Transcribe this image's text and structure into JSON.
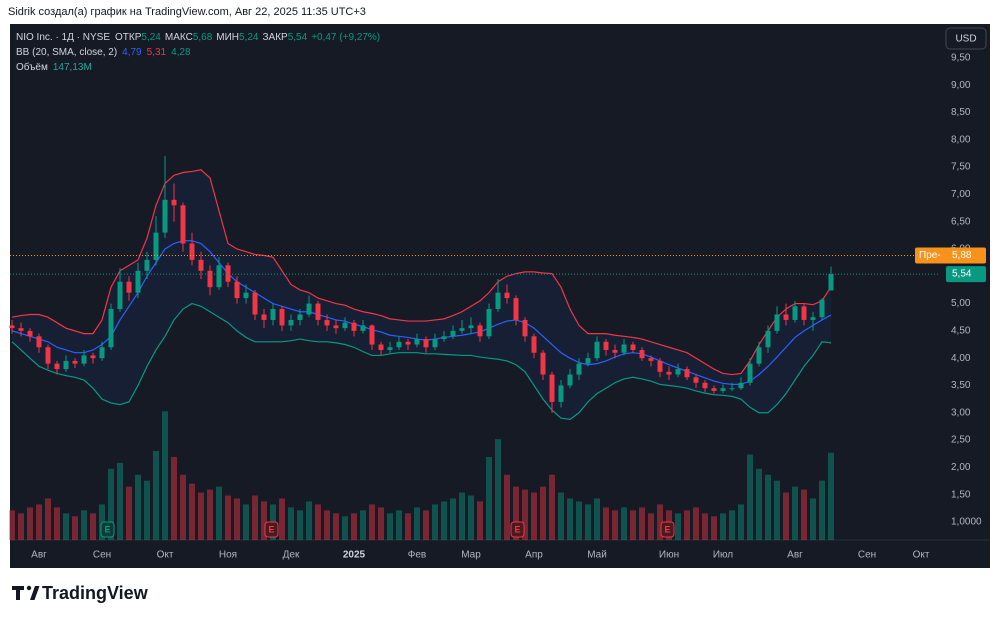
{
  "header": "Sidrik создал(а) график на TradingView.com, Авг 22, 2025 11:35 UTC+3",
  "footer_logo": "TradingView",
  "currency": "USD",
  "earnings_label": "E",
  "chart_data": {
    "type": "candlestick",
    "legend": {
      "symbol": "NIO Inc. · 1Д · NYSE",
      "open_label": "ОТКР",
      "open": "5,24",
      "high_label": "МАКС",
      "high": "5,68",
      "low_label": "МИН",
      "low": "5,24",
      "close_label": "ЗАКР",
      "close": "5,54",
      "change": "+0,47 (+9,27%)"
    },
    "up_color": "#089981",
    "down_color": "#f23645",
    "ylim": [
      0.67,
      10.12
    ],
    "yticks": [
      {
        "value": 9.5,
        "label": "9,50"
      },
      {
        "value": 9,
        "label": "9,00"
      },
      {
        "value": 8.5,
        "label": "8,50"
      },
      {
        "value": 8,
        "label": "8,00"
      },
      {
        "value": 7.5,
        "label": "7,50"
      },
      {
        "value": 7,
        "label": "7,00"
      },
      {
        "value": 6.5,
        "label": "6,50"
      },
      {
        "value": 6,
        "label": "6,00"
      },
      {
        "value": 5,
        "label": "5,00"
      },
      {
        "value": 4.5,
        "label": "4,50"
      },
      {
        "value": 4,
        "label": "4,00"
      },
      {
        "value": 3.5,
        "label": "3,50"
      },
      {
        "value": 3,
        "label": "3,00"
      },
      {
        "value": 2.5,
        "label": "2,50"
      },
      {
        "value": 2,
        "label": "2,00"
      },
      {
        "value": 1.5,
        "label": "1,50"
      },
      {
        "value": 1,
        "label": "1,0000"
      }
    ],
    "premarket": {
      "label": "Пре-",
      "value": 5.88,
      "value_label": "5,88",
      "color": "#f7931a"
    },
    "categories": [
      null,
      null,
      null,
      "Авг",
      null,
      null,
      null,
      null,
      null,
      null,
      "Сен",
      null,
      null,
      null,
      null,
      null,
      null,
      "Окт",
      null,
      null,
      null,
      null,
      null,
      null,
      "Ноя",
      null,
      null,
      null,
      null,
      null,
      null,
      "Дек",
      null,
      null,
      null,
      null,
      null,
      null,
      "2025",
      null,
      null,
      null,
      null,
      null,
      null,
      "Фев",
      null,
      null,
      null,
      null,
      null,
      "Мар",
      null,
      null,
      null,
      null,
      null,
      null,
      "Апр",
      null,
      null,
      null,
      null,
      null,
      null,
      "Май",
      null,
      null,
      null,
      null,
      null,
      null,
      null,
      "Июн",
      null,
      null,
      null,
      null,
      null,
      "Июл",
      null,
      null,
      null,
      null,
      null,
      null,
      null,
      "Авг",
      null,
      null,
      null,
      null,
      null,
      null,
      null,
      "Сен",
      null,
      null,
      null,
      null,
      null,
      "Окт"
    ],
    "candles": [
      [
        4.6,
        4.7,
        4.45,
        4.55
      ],
      [
        4.55,
        4.65,
        4.4,
        4.5
      ],
      [
        4.5,
        4.55,
        4.3,
        4.4
      ],
      [
        4.4,
        4.45,
        4.1,
        4.2
      ],
      [
        4.2,
        4.25,
        3.8,
        3.9
      ],
      [
        3.9,
        3.95,
        3.7,
        3.8
      ],
      [
        3.8,
        4.05,
        3.75,
        3.95
      ],
      [
        3.95,
        4.0,
        3.82,
        3.9
      ],
      [
        3.9,
        4.15,
        3.85,
        4.05
      ],
      [
        4.05,
        4.1,
        3.9,
        4.0
      ],
      [
        4.0,
        4.3,
        3.95,
        4.2
      ],
      [
        4.2,
        5.0,
        4.15,
        4.9
      ],
      [
        4.9,
        5.65,
        4.85,
        5.4
      ],
      [
        5.4,
        5.5,
        5.05,
        5.2
      ],
      [
        5.2,
        5.75,
        5.1,
        5.6
      ],
      [
        5.6,
        5.95,
        5.45,
        5.8
      ],
      [
        5.8,
        6.6,
        5.7,
        6.3
      ],
      [
        6.3,
        7.7,
        6.2,
        6.9
      ],
      [
        6.9,
        7.2,
        6.5,
        6.8
      ],
      [
        6.8,
        6.85,
        5.95,
        6.1
      ],
      [
        6.1,
        6.3,
        5.7,
        5.8
      ],
      [
        5.8,
        5.95,
        5.45,
        5.6
      ],
      [
        5.6,
        5.7,
        5.15,
        5.3
      ],
      [
        5.3,
        5.85,
        5.25,
        5.7
      ],
      [
        5.7,
        5.75,
        5.3,
        5.4
      ],
      [
        5.4,
        5.5,
        5.0,
        5.1
      ],
      [
        5.1,
        5.35,
        5.0,
        5.2
      ],
      [
        5.2,
        5.25,
        4.7,
        4.8
      ],
      [
        4.8,
        4.9,
        4.55,
        4.7
      ],
      [
        4.7,
        5.0,
        4.6,
        4.9
      ],
      [
        4.9,
        4.95,
        4.5,
        4.6
      ],
      [
        4.6,
        4.8,
        4.5,
        4.7
      ],
      [
        4.7,
        4.9,
        4.6,
        4.8
      ],
      [
        4.8,
        5.15,
        4.75,
        5.0
      ],
      [
        5.0,
        5.05,
        4.6,
        4.7
      ],
      [
        4.7,
        4.8,
        4.5,
        4.6
      ],
      [
        4.6,
        4.7,
        4.45,
        4.55
      ],
      [
        4.55,
        4.75,
        4.5,
        4.65
      ],
      [
        4.65,
        4.7,
        4.4,
        4.5
      ],
      [
        4.5,
        4.7,
        4.45,
        4.6
      ],
      [
        4.6,
        4.62,
        4.15,
        4.25
      ],
      [
        4.25,
        4.3,
        4.05,
        4.15
      ],
      [
        4.15,
        4.3,
        4.1,
        4.2
      ],
      [
        4.2,
        4.4,
        4.15,
        4.3
      ],
      [
        4.3,
        4.35,
        4.15,
        4.25
      ],
      [
        4.25,
        4.45,
        4.2,
        4.35
      ],
      [
        4.35,
        4.4,
        4.1,
        4.2
      ],
      [
        4.2,
        4.45,
        4.15,
        4.35
      ],
      [
        4.35,
        4.5,
        4.3,
        4.4
      ],
      [
        4.4,
        4.6,
        4.35,
        4.5
      ],
      [
        4.5,
        4.7,
        4.45,
        4.55
      ],
      [
        4.55,
        4.75,
        4.45,
        4.6
      ],
      [
        4.6,
        4.65,
        4.3,
        4.4
      ],
      [
        4.4,
        5.0,
        4.35,
        4.9
      ],
      [
        4.9,
        5.45,
        4.85,
        5.2
      ],
      [
        5.2,
        5.35,
        5.0,
        5.1
      ],
      [
        5.1,
        5.15,
        4.6,
        4.7
      ],
      [
        4.7,
        4.75,
        4.3,
        4.4
      ],
      [
        4.4,
        4.45,
        4.0,
        4.1
      ],
      [
        4.1,
        4.15,
        3.6,
        3.7
      ],
      [
        3.7,
        3.75,
        3.0,
        3.2
      ],
      [
        3.2,
        3.6,
        3.1,
        3.5
      ],
      [
        3.5,
        3.8,
        3.45,
        3.7
      ],
      [
        3.7,
        4.0,
        3.6,
        3.9
      ],
      [
        3.9,
        4.1,
        3.85,
        4.0
      ],
      [
        4.0,
        4.4,
        3.95,
        4.3
      ],
      [
        4.3,
        4.35,
        4.05,
        4.15
      ],
      [
        4.15,
        4.25,
        4.0,
        4.1
      ],
      [
        4.1,
        4.35,
        4.05,
        4.25
      ],
      [
        4.25,
        4.3,
        4.1,
        4.15
      ],
      [
        4.15,
        4.2,
        3.95,
        4.0
      ],
      [
        4.0,
        4.05,
        3.85,
        3.95
      ],
      [
        3.95,
        4.0,
        3.65,
        3.75
      ],
      [
        3.75,
        3.85,
        3.6,
        3.7
      ],
      [
        3.7,
        3.9,
        3.65,
        3.8
      ],
      [
        3.8,
        3.85,
        3.6,
        3.65
      ],
      [
        3.65,
        3.7,
        3.45,
        3.55
      ],
      [
        3.55,
        3.6,
        3.38,
        3.45
      ],
      [
        3.45,
        3.5,
        3.35,
        3.4
      ],
      [
        3.4,
        3.52,
        3.36,
        3.45
      ],
      [
        3.45,
        3.55,
        3.4,
        3.45
      ],
      [
        3.45,
        3.65,
        3.42,
        3.55
      ],
      [
        3.55,
        4.0,
        3.5,
        3.9
      ],
      [
        3.9,
        4.3,
        3.85,
        4.2
      ],
      [
        4.2,
        4.6,
        4.1,
        4.5
      ],
      [
        4.5,
        4.95,
        4.45,
        4.8
      ],
      [
        4.8,
        5.0,
        4.6,
        4.7
      ],
      [
        4.7,
        5.05,
        4.65,
        4.95
      ],
      [
        4.95,
        5.0,
        4.6,
        4.7
      ],
      [
        4.7,
        4.85,
        4.5,
        4.75
      ],
      [
        4.75,
        5.1,
        4.7,
        5.07
      ],
      [
        5.24,
        5.68,
        5.24,
        5.54
      ],
      null,
      null,
      null,
      null,
      null,
      null,
      null,
      null,
      null,
      null
    ],
    "volume": {
      "name": "Объём",
      "value_label": "147,13M",
      "ylim": [
        0,
        870
      ],
      "color": "#26a69a",
      "values": [
        50,
        45,
        55,
        60,
        70,
        55,
        45,
        40,
        50,
        45,
        60,
        120,
        130,
        90,
        110,
        100,
        150,
        217,
        140,
        110,
        95,
        80,
        85,
        90,
        75,
        70,
        60,
        75,
        65,
        60,
        70,
        55,
        50,
        65,
        60,
        50,
        45,
        40,
        45,
        50,
        60,
        55,
        45,
        50,
        45,
        55,
        50,
        60,
        65,
        70,
        80,
        75,
        65,
        140,
        170,
        110,
        90,
        85,
        80,
        90,
        110,
        80,
        70,
        65,
        60,
        70,
        55,
        50,
        55,
        50,
        55,
        45,
        60,
        50,
        45,
        50,
        55,
        45,
        40,
        45,
        50,
        60,
        144,
        120,
        110,
        100,
        80,
        90,
        85,
        70,
        100,
        147.13,
        null,
        null,
        null,
        null,
        null,
        null,
        null,
        null,
        null,
        null
      ]
    },
    "bb": {
      "name": "BB (20, SMA, close, 2)",
      "value_labels": {
        "middle": "4,79",
        "upper": "5,31",
        "lower": "4,28"
      },
      "colors": {
        "upper": "#f23645",
        "middle": "#2962ff",
        "lower": "#089981"
      },
      "upper": [
        4.75,
        4.78,
        4.8,
        4.8,
        4.75,
        4.65,
        4.55,
        4.5,
        4.45,
        4.45,
        4.7,
        5.3,
        5.6,
        5.7,
        5.8,
        6.2,
        6.8,
        7.2,
        7.35,
        7.4,
        7.42,
        7.45,
        7.3,
        6.7,
        6.1,
        6.0,
        5.95,
        5.9,
        5.88,
        5.85,
        5.6,
        5.35,
        5.25,
        5.2,
        5.1,
        5.05,
        5.0,
        4.97,
        4.9,
        4.85,
        4.82,
        4.78,
        4.72,
        4.7,
        4.68,
        4.68,
        4.68,
        4.7,
        4.72,
        4.78,
        4.85,
        4.95,
        5.05,
        5.2,
        5.4,
        5.5,
        5.55,
        5.58,
        5.58,
        5.56,
        5.55,
        5.3,
        4.9,
        4.6,
        4.45,
        4.45,
        4.45,
        4.42,
        4.4,
        4.38,
        4.35,
        4.3,
        4.25,
        4.2,
        4.15,
        4.1,
        4.0,
        3.9,
        3.8,
        3.72,
        3.7,
        3.72,
        3.95,
        4.25,
        4.5,
        4.75,
        4.9,
        5.0,
        5.0,
        4.98,
        5.05,
        5.31,
        null,
        null,
        null,
        null,
        null,
        null,
        null,
        null,
        null,
        null
      ],
      "middle": [
        4.5,
        4.45,
        4.4,
        4.35,
        4.3,
        4.2,
        4.15,
        4.1,
        4.1,
        4.15,
        4.25,
        4.4,
        4.7,
        4.95,
        5.2,
        5.5,
        5.75,
        6.0,
        6.1,
        6.15,
        6.15,
        6.1,
        5.95,
        5.75,
        5.55,
        5.4,
        5.3,
        5.2,
        5.1,
        5.0,
        4.95,
        4.9,
        4.85,
        4.85,
        4.8,
        4.75,
        4.7,
        4.68,
        4.62,
        4.58,
        4.52,
        4.48,
        4.42,
        4.4,
        4.38,
        4.35,
        4.33,
        4.35,
        4.38,
        4.4,
        4.42,
        4.45,
        4.48,
        4.55,
        4.62,
        4.68,
        4.7,
        4.65,
        4.55,
        4.4,
        4.25,
        4.1,
        4.0,
        3.92,
        3.88,
        3.9,
        3.95,
        4.02,
        4.08,
        4.1,
        4.08,
        4.02,
        3.95,
        3.88,
        3.82,
        3.76,
        3.7,
        3.64,
        3.58,
        3.54,
        3.52,
        3.52,
        3.58,
        3.7,
        3.85,
        4.02,
        4.2,
        4.38,
        4.5,
        4.6,
        4.7,
        4.79,
        null,
        null,
        null,
        null,
        null,
        null,
        null,
        null,
        null,
        null
      ],
      "lower": [
        4.3,
        4.15,
        4.0,
        3.85,
        3.78,
        3.72,
        3.68,
        3.65,
        3.6,
        3.45,
        3.25,
        3.18,
        3.15,
        3.2,
        3.5,
        3.85,
        4.15,
        4.4,
        4.7,
        4.9,
        5.0,
        4.95,
        4.85,
        4.75,
        4.65,
        4.5,
        4.38,
        4.3,
        4.3,
        4.3,
        4.3,
        4.32,
        4.35,
        4.32,
        4.3,
        4.3,
        4.28,
        4.25,
        4.2,
        4.12,
        4.05,
        4.05,
        4.08,
        4.1,
        4.1,
        4.1,
        4.08,
        4.08,
        4.07,
        4.06,
        4.05,
        4.05,
        4.02,
        4.0,
        3.98,
        3.95,
        3.88,
        3.75,
        3.5,
        3.25,
        3.05,
        2.9,
        2.88,
        3.0,
        3.2,
        3.35,
        3.45,
        3.55,
        3.62,
        3.65,
        3.62,
        3.58,
        3.52,
        3.5,
        3.48,
        3.45,
        3.4,
        3.36,
        3.33,
        3.32,
        3.3,
        3.25,
        3.1,
        3.0,
        3.0,
        3.15,
        3.35,
        3.6,
        3.85,
        4.05,
        4.3,
        4.28,
        null,
        null,
        null,
        null,
        null,
        null,
        null,
        null,
        null,
        null
      ]
    }
  }
}
